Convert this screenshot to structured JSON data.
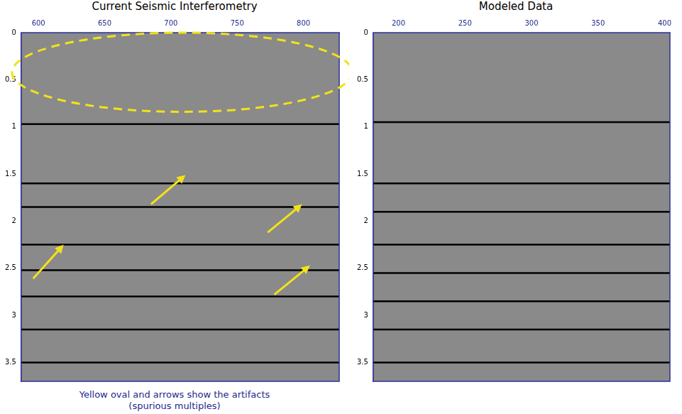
{
  "chart_data": [
    {
      "type": "line",
      "title": "Current Seismic Interferometry",
      "xlim": [
        587,
        827
      ],
      "xticks": [
        600,
        650,
        700,
        750,
        800
      ],
      "ylim": [
        0,
        3.7
      ],
      "yticks": [
        0,
        0.5,
        1,
        1.5,
        2,
        2.5,
        3,
        3.5
      ],
      "grid": false,
      "color": "#000000",
      "reflector_times": [
        0.97,
        1.6,
        1.85,
        2.25,
        2.52,
        2.8,
        3.15,
        3.5
      ],
      "oval": {
        "x": [
          580,
          837
        ],
        "y": [
          0,
          0.84
        ]
      },
      "arrows": [
        {
          "from": [
            596,
            2.61
          ],
          "to": [
            619,
            2.25
          ]
        },
        {
          "from": [
            685,
            1.82
          ],
          "to": [
            711,
            1.51
          ]
        },
        {
          "from": [
            773,
            2.12
          ],
          "to": [
            799,
            1.82
          ]
        },
        {
          "from": [
            778,
            2.78
          ],
          "to": [
            805,
            2.47
          ]
        }
      ],
      "caption": [
        "Yellow oval  and arrows show the artifacts",
        "(spurious multiples)"
      ]
    },
    {
      "type": "line",
      "title": "Modeled Data",
      "xlim": [
        181,
        404
      ],
      "xticks": [
        200,
        250,
        300,
        350,
        400
      ],
      "ylim": [
        0,
        3.7
      ],
      "yticks": [
        0,
        0.5,
        1,
        1.5,
        2,
        2.5,
        3,
        3.5
      ],
      "grid": false,
      "color": "#000000",
      "reflector_times": [
        0.95,
        1.6,
        1.9,
        2.25,
        2.55,
        2.85,
        3.15,
        3.5
      ]
    }
  ]
}
